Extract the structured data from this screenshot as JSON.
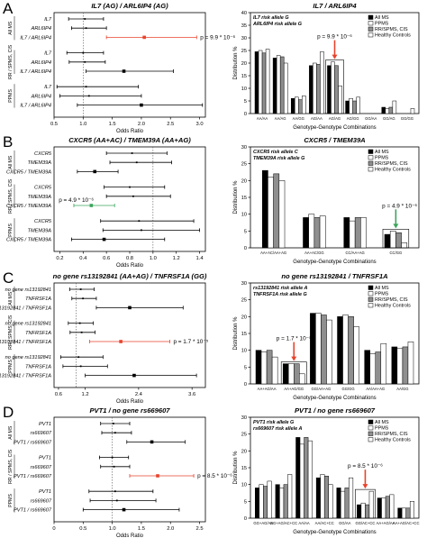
{
  "figure": {
    "panel_letters": [
      "A",
      "B",
      "C",
      "D"
    ],
    "forest_axis_label": "Odds Ratio",
    "bar_xlabel": "Genotype-Genotype Combinations",
    "bar_ylabel": "Distribution %",
    "legend_entries": [
      "All MS",
      "PPMS",
      "RR/SPMS, CIS",
      "Healthy Controls"
    ],
    "group_labels": [
      "All MS",
      "RR / SPMS, CIS",
      "PPMS"
    ],
    "colors": {
      "allms": "#000000",
      "ppms": "#ffffff",
      "rr": "#8f8f8f",
      "hc": "#ffffff",
      "highlight_red": "#e8432c",
      "highlight_green": "#3aa55a"
    }
  },
  "chart_data": [
    {
      "type": "forest",
      "panel": "A",
      "title": "IL7 (AG) / ARL6IP4 (AG)",
      "xlabel": "Odds Ratio",
      "xticks": [
        "0.5",
        "1.0",
        "1.5",
        "2.0",
        "2.5",
        "3.0"
      ],
      "xlim": [
        0.5,
        3.1
      ],
      "annotation": "p = 9.9 * 10⁻⁶",
      "groups": [
        {
          "name": "All MS",
          "rows": [
            {
              "label": "IL7",
              "or": 1.03,
              "lo": 0.75,
              "hi": 1.35
            },
            {
              "label": "ARL6IP4",
              "or": 1.05,
              "lo": 0.8,
              "hi": 1.4
            },
            {
              "label": "IL7 / ARL6IP4",
              "or": 2.05,
              "lo": 1.4,
              "hi": 2.95,
              "highlight": "red"
            }
          ]
        },
        {
          "name": "RR / SPMS, CIS",
          "rows": [
            {
              "label": "IL7",
              "or": 1.0,
              "lo": 0.72,
              "hi": 1.35
            },
            {
              "label": "ARL6IP4",
              "or": 1.03,
              "lo": 0.76,
              "hi": 1.38
            },
            {
              "label": "IL7 / ARL6IP4",
              "or": 1.7,
              "lo": 1.05,
              "hi": 2.55
            }
          ]
        },
        {
          "name": "PPMS",
          "rows": [
            {
              "label": "IL7",
              "or": 1.05,
              "lo": 0.55,
              "hi": 1.95
            },
            {
              "label": "ARL6IP4",
              "or": 1.1,
              "lo": 0.6,
              "hi": 2.0
            },
            {
              "label": "IL7 / ARL6IP4",
              "or": 2.0,
              "lo": 0.9,
              "hi": 3.05
            }
          ]
        }
      ]
    },
    {
      "type": "bar",
      "panel": "A",
      "title": "IL7 / ARL6IP4",
      "risk_note": [
        "IL7 risk allele G",
        "ARL6IP4 risk allele G"
      ],
      "categories": [
        "AA/AA",
        "AA/AG",
        "AA/GG",
        "AG/AA",
        "AG/AG",
        "AG/GG",
        "GG/AA",
        "GG/AG",
        "GG/GG"
      ],
      "ylim": [
        0,
        40
      ],
      "yticks": [
        0,
        5,
        10,
        15,
        20,
        25,
        30,
        35,
        40
      ],
      "annotation": "p = 9.9 * 10⁻⁶",
      "highlight_category": "AG/AG",
      "series": [
        {
          "name": "All MS",
          "values": [
            24.5,
            22,
            6,
            19,
            19,
            5,
            0,
            2.5,
            0
          ]
        },
        {
          "name": "PPMS",
          "values": [
            25,
            23,
            6.5,
            20,
            20.5,
            6,
            0,
            2,
            0
          ]
        },
        {
          "name": "RR/SPMS, CIS",
          "values": [
            24,
            22.5,
            5.5,
            19.5,
            19,
            5,
            0,
            2.5,
            0
          ]
        },
        {
          "name": "Healthy Controls",
          "values": [
            25.5,
            20,
            7,
            24.5,
            11,
            6.5,
            0,
            5,
            2
          ]
        }
      ]
    },
    {
      "type": "forest",
      "panel": "B",
      "title": "CXCR5 (AA+AC) / TMEM39A (AA+AG)",
      "xlabel": "Odds Ratio",
      "xticks": [
        "0.2",
        "0.4",
        "0.6",
        "0.8",
        "1.0",
        "1.2",
        "1.4"
      ],
      "xlim": [
        0.15,
        1.45
      ],
      "annotation": "p = 4.9 * 10⁻⁶",
      "groups": [
        {
          "name": "All MS",
          "rows": [
            {
              "label": "CXCR5",
              "or": 0.82,
              "lo": 0.6,
              "hi": 1.12
            },
            {
              "label": "TMEM39A",
              "or": 0.86,
              "lo": 0.63,
              "hi": 1.16
            },
            {
              "label": "CXCR5 / TMEM39A",
              "or": 0.5,
              "lo": 0.35,
              "hi": 0.7
            }
          ]
        },
        {
          "name": "RR / SPMS, CIS",
          "rows": [
            {
              "label": "CXCR5",
              "or": 0.8,
              "lo": 0.58,
              "hi": 1.1
            },
            {
              "label": "TMEM39A",
              "or": 0.83,
              "lo": 0.6,
              "hi": 1.15
            },
            {
              "label": "CXCR5 / TMEM39A",
              "or": 0.47,
              "lo": 0.32,
              "hi": 0.67,
              "highlight": "green"
            }
          ]
        },
        {
          "name": "PPMS",
          "rows": [
            {
              "label": "CXCR5",
              "or": 0.88,
              "lo": 0.55,
              "hi": 1.35
            },
            {
              "label": "TMEM39A",
              "or": 0.9,
              "lo": 0.57,
              "hi": 1.4
            },
            {
              "label": "CXCR5 / TMEM39A",
              "or": 0.58,
              "lo": 0.3,
              "hi": 1.1
            }
          ]
        }
      ]
    },
    {
      "type": "bar",
      "panel": "B",
      "title": "CXCR5 / TMEM39A",
      "risk_note": [
        "CXCR5 risk allele C",
        "TMEM39A risk allele G"
      ],
      "categories": [
        "AA+AC/AA+AG",
        "AA+AC/GG",
        "CC/AA+AG",
        "CC/GG"
      ],
      "ylim": [
        0,
        30
      ],
      "yticks": [
        0,
        5,
        10,
        15,
        20,
        25,
        30
      ],
      "annotation": "p = 4.9 * 10⁻⁶",
      "highlight_category": "CC/GG",
      "series": [
        {
          "name": "All MS",
          "values": [
            23,
            9,
            9,
            4
          ]
        },
        {
          "name": "PPMS",
          "values": [
            21,
            10,
            8,
            5
          ]
        },
        {
          "name": "RR/SPMS, CIS",
          "values": [
            22,
            9,
            9,
            4.5
          ]
        },
        {
          "name": "Healthy Controls",
          "values": [
            20,
            9.5,
            9,
            1.5
          ]
        }
      ]
    },
    {
      "type": "forest",
      "panel": "C",
      "title": "no gene rs13192841 (AA+AG) / TNFRSF1A (GG)",
      "xlabel": "Odds Ratio",
      "xticks": [
        "0.6",
        "1.2",
        "2.4",
        "3.6"
      ],
      "xlim": [
        0.5,
        3.9
      ],
      "annotation": "p = 1.7 * 10⁻⁵",
      "groups": [
        {
          "name": "All MS",
          "rows": [
            {
              "label": "no gene rs13192841",
              "or": 1.1,
              "lo": 0.85,
              "hi": 1.4
            },
            {
              "label": "TNFRSF1A",
              "or": 1.15,
              "lo": 0.9,
              "hi": 1.45
            },
            {
              "label": "rs13192841 / TNFRSF1A",
              "or": 2.2,
              "lo": 1.45,
              "hi": 3.4
            }
          ]
        },
        {
          "name": "RR / SPMS, CIS",
          "rows": [
            {
              "label": "no gene rs13192841",
              "or": 1.08,
              "lo": 0.82,
              "hi": 1.38
            },
            {
              "label": "TNFRSF1A",
              "or": 1.12,
              "lo": 0.86,
              "hi": 1.42
            },
            {
              "label": "rs13192841 / TNFRSF1A",
              "or": 2.0,
              "lo": 1.3,
              "hi": 3.1,
              "highlight": "red"
            }
          ]
        },
        {
          "name": "PPMS",
          "rows": [
            {
              "label": "no gene rs13192841",
              "or": 1.05,
              "lo": 0.65,
              "hi": 1.6
            },
            {
              "label": "TNFRSF1A",
              "or": 1.1,
              "lo": 0.7,
              "hi": 1.7
            },
            {
              "label": "rs13192841 / TNFRSF1A",
              "or": 2.3,
              "lo": 1.2,
              "hi": 3.7
            }
          ]
        }
      ]
    },
    {
      "type": "bar",
      "panel": "C",
      "title": "no gene rs13192841 / TNFRSF1A",
      "risk_note": [
        "rs13192841 risk allele A",
        "TNFRSF1A risk allele G"
      ],
      "categories": [
        "AA+AG/AA",
        "AA+AG/GG",
        "GG/AA+AG",
        "GG/GG",
        "AA/AA+AG",
        "AA/GG"
      ],
      "ylim": [
        0,
        30
      ],
      "yticks": [
        0,
        5,
        10,
        15,
        20,
        25,
        30
      ],
      "annotation": "p = 1.7 * 10⁻⁵",
      "highlight_category": "AA+AG/GG",
      "series": [
        {
          "name": "All MS",
          "values": [
            10,
            6,
            21,
            20,
            10,
            11
          ]
        },
        {
          "name": "PPMS",
          "values": [
            9.5,
            6,
            21,
            20.5,
            9,
            10.5
          ]
        },
        {
          "name": "RR/SPMS, CIS",
          "values": [
            10,
            6,
            20.5,
            20,
            9.5,
            11
          ]
        },
        {
          "name": "Healthy Controls",
          "values": [
            8,
            3,
            19,
            17,
            12,
            12.5
          ]
        }
      ]
    },
    {
      "type": "forest",
      "panel": "D",
      "title": "PVT1 / no gene rs669607",
      "xlabel": "Odds Ratio",
      "xticks": [
        "0",
        "0.5",
        "1.0",
        "1.5",
        "2.0",
        "2.5"
      ],
      "xlim": [
        0,
        2.6
      ],
      "annotation": "p = 8.5 * 10⁻⁶",
      "groups": [
        {
          "name": "All MS",
          "rows": [
            {
              "label": "PVT1",
              "or": 1.02,
              "lo": 0.8,
              "hi": 1.3
            },
            {
              "label": "rs669607",
              "or": 1.05,
              "lo": 0.82,
              "hi": 1.33
            },
            {
              "label": "PVT1 / rs669607",
              "or": 1.68,
              "lo": 1.25,
              "hi": 2.25
            }
          ]
        },
        {
          "name": "RR / SPMS, CIS",
          "rows": [
            {
              "label": "PVT1",
              "or": 1.0,
              "lo": 0.78,
              "hi": 1.28
            },
            {
              "label": "rs669607",
              "or": 1.03,
              "lo": 0.8,
              "hi": 1.3
            },
            {
              "label": "PVT1 / rs669607",
              "or": 1.78,
              "lo": 1.3,
              "hi": 2.4,
              "highlight": "red"
            }
          ]
        },
        {
          "name": "PPMS",
          "rows": [
            {
              "label": "PVT1",
              "or": 1.05,
              "lo": 0.6,
              "hi": 1.7
            },
            {
              "label": "rs669607",
              "or": 1.08,
              "lo": 0.62,
              "hi": 1.75
            },
            {
              "label": "PVT1 / rs669607",
              "or": 1.2,
              "lo": 0.5,
              "hi": 2.15
            }
          ]
        }
      ]
    },
    {
      "type": "bar",
      "panel": "D",
      "title": "PVT1 / no gene rs669607",
      "risk_note": [
        "PVT1 risk allele G",
        "rs669607 risk allele A"
      ],
      "categories": [
        "GG+AG/AA",
        "GG+AG/AC+CC",
        "AA/AA",
        "AA/AC+CC",
        "GG/AA",
        "GG/AC+CC",
        "AA+AG/AA",
        "AA+AG/AC+CC"
      ],
      "ylim": [
        0,
        30
      ],
      "yticks": [
        0,
        5,
        10,
        15,
        20,
        25,
        30
      ],
      "annotation": "p = 8.5 * 10⁻⁶",
      "highlight_category": "GG/AC+CC",
      "series": [
        {
          "name": "All MS",
          "values": [
            9,
            10,
            24,
            12,
            9,
            4,
            6,
            3
          ]
        },
        {
          "name": "PPMS",
          "values": [
            10,
            9,
            22,
            13,
            8,
            4.5,
            6,
            3
          ]
        },
        {
          "name": "RR/SPMS, CIS",
          "values": [
            9.5,
            10,
            24,
            12.5,
            9,
            4,
            6.5,
            3
          ]
        },
        {
          "name": "Healthy Controls",
          "values": [
            11,
            13,
            23,
            10,
            12,
            8,
            7,
            5
          ]
        }
      ]
    }
  ]
}
